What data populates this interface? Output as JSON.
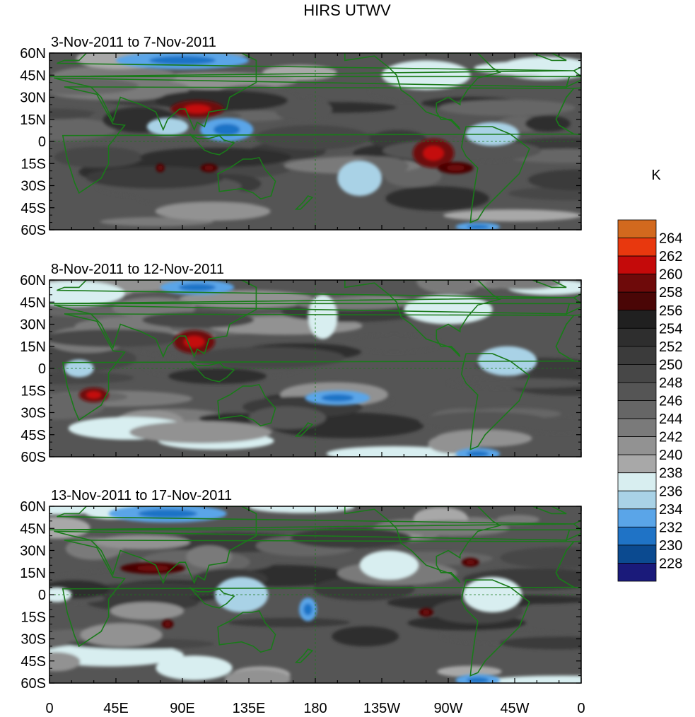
{
  "chart_data": {
    "type": "heatmap",
    "title": "HIRS UTWV",
    "units": "K",
    "colorbar_levels": [
      228,
      230,
      232,
      234,
      236,
      238,
      240,
      242,
      244,
      246,
      248,
      250,
      252,
      254,
      256,
      258,
      260,
      262,
      264
    ],
    "colorbar_colors": [
      "#1a1a7a",
      "#0b4a90",
      "#1f73c6",
      "#5aa5e8",
      "#a9d2e6",
      "#d8eef0",
      "#a8a8a8",
      "#929292",
      "#7a7a7a",
      "#666666",
      "#555555",
      "#474747",
      "#3b3b3b",
      "#2e2e2e",
      "#202020",
      "#4a0606",
      "#6e0a0a",
      "#c40a0a",
      "#e8380e",
      "#d2691e"
    ],
    "x_ticks": [
      "0",
      "45E",
      "90E",
      "135E",
      "180",
      "135W",
      "90W",
      "45W",
      "0"
    ],
    "y_ticks": [
      "60N",
      "45N",
      "30N",
      "15N",
      "0",
      "15S",
      "30S",
      "45S",
      "60S"
    ],
    "panels": [
      {
        "label": "3-Nov-2011 to 7-Nov-2011",
        "blobs": [
          {
            "lon": 100,
            "lat": 22,
            "rx": 18,
            "ry": 6,
            "value": 258
          },
          {
            "lon": 260,
            "lat": -8,
            "rx": 14,
            "ry": 10,
            "value": 259
          },
          {
            "lon": 275,
            "lat": -18,
            "rx": 12,
            "ry": 4,
            "value": 257
          },
          {
            "lon": 108,
            "lat": -18,
            "rx": 6,
            "ry": 3,
            "value": 257
          },
          {
            "lon": 75,
            "lat": -18,
            "rx": 3,
            "ry": 3,
            "value": 257
          },
          {
            "lon": 120,
            "lat": 8,
            "rx": 18,
            "ry": 8,
            "value": 233
          },
          {
            "lon": 80,
            "lat": 10,
            "rx": 14,
            "ry": 6,
            "value": 235
          },
          {
            "lon": 90,
            "lat": 55,
            "rx": 45,
            "ry": 6,
            "value": 232
          },
          {
            "lon": 300,
            "lat": 5,
            "rx": 18,
            "ry": 8,
            "value": 235
          },
          {
            "lon": 210,
            "lat": -25,
            "rx": 15,
            "ry": 12,
            "value": 235
          },
          {
            "lon": 290,
            "lat": -58,
            "rx": 15,
            "ry": 3,
            "value": 232
          },
          {
            "lon": 255,
            "lat": 45,
            "rx": 30,
            "ry": 10,
            "value": 237
          }
        ]
      },
      {
        "label": "8-Nov-2011 to 12-Nov-2011",
        "blobs": [
          {
            "lon": 98,
            "lat": 18,
            "rx": 14,
            "ry": 8,
            "value": 259
          },
          {
            "lon": 30,
            "lat": -18,
            "rx": 10,
            "ry": 5,
            "value": 258
          },
          {
            "lon": 195,
            "lat": -20,
            "rx": 22,
            "ry": 5,
            "value": 233
          },
          {
            "lon": 100,
            "lat": 55,
            "rx": 25,
            "ry": 5,
            "value": 232
          },
          {
            "lon": 185,
            "lat": 35,
            "rx": 10,
            "ry": 15,
            "value": 236
          },
          {
            "lon": 270,
            "lat": 40,
            "rx": 30,
            "ry": 10,
            "value": 237
          },
          {
            "lon": 310,
            "lat": 5,
            "rx": 20,
            "ry": 10,
            "value": 235
          },
          {
            "lon": 20,
            "lat": 0,
            "rx": 10,
            "ry": 6,
            "value": 235
          },
          {
            "lon": 290,
            "lat": -58,
            "rx": 15,
            "ry": 4,
            "value": 233
          }
        ]
      },
      {
        "label": "13-Nov-2011 to 17-Nov-2011",
        "blobs": [
          {
            "lon": 70,
            "lat": 18,
            "rx": 22,
            "ry": 4,
            "value": 257
          },
          {
            "lon": 80,
            "lat": -20,
            "rx": 4,
            "ry": 3,
            "value": 257
          },
          {
            "lon": 255,
            "lat": -12,
            "rx": 5,
            "ry": 3,
            "value": 257
          },
          {
            "lon": 285,
            "lat": 22,
            "rx": 6,
            "ry": 3,
            "value": 257
          },
          {
            "lon": 130,
            "lat": 0,
            "rx": 18,
            "ry": 12,
            "value": 235
          },
          {
            "lon": 175,
            "lat": -10,
            "rx": 6,
            "ry": 8,
            "value": 233
          },
          {
            "lon": 80,
            "lat": 55,
            "rx": 40,
            "ry": 6,
            "value": 233
          },
          {
            "lon": 300,
            "lat": 0,
            "rx": 20,
            "ry": 12,
            "value": 236
          },
          {
            "lon": 230,
            "lat": 20,
            "rx": 20,
            "ry": 10,
            "value": 237
          },
          {
            "lon": 290,
            "lat": -58,
            "rx": 15,
            "ry": 4,
            "value": 233
          },
          {
            "lon": 5,
            "lat": 0,
            "rx": 10,
            "ry": 5,
            "value": 236
          }
        ]
      }
    ]
  }
}
